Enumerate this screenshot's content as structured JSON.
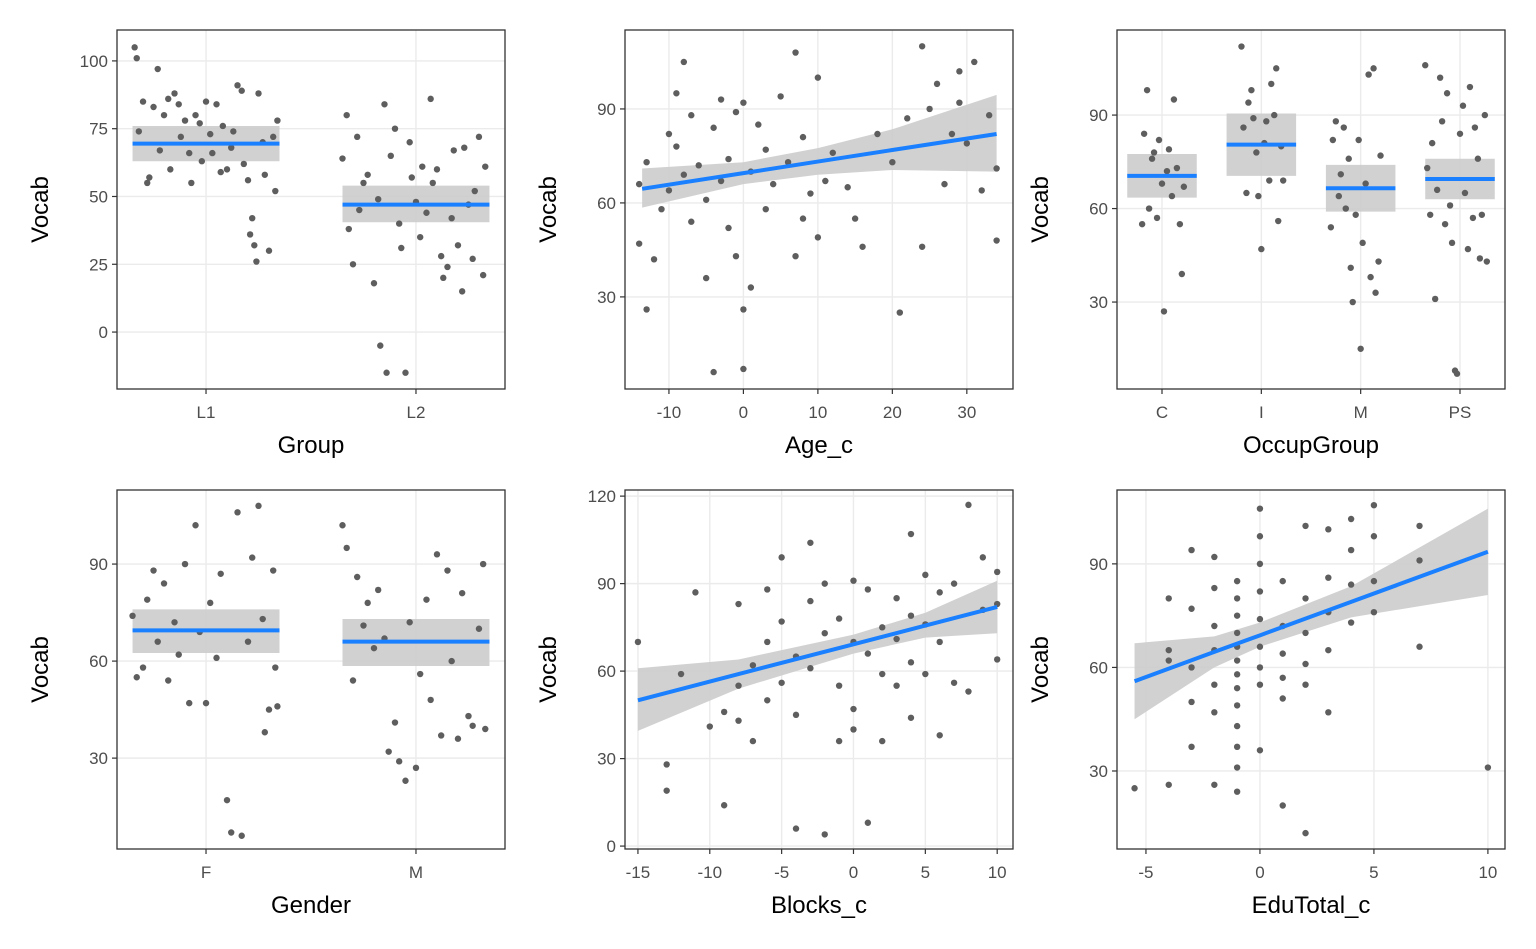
{
  "chart_data": [
    {
      "type": "scatter",
      "xlabel": "Group",
      "ylabel": "Vocab",
      "xlim": [
        0.576,
        2.424
      ],
      "ylim": [
        -21.0,
        111.4
      ],
      "xticks": [
        {
          "value": 1,
          "label": "L1"
        },
        {
          "value": 2,
          "label": "L2"
        }
      ],
      "yticks": [
        0,
        25,
        50,
        75,
        100
      ],
      "grid": true,
      "point_color": "#5e5e5e",
      "line_color": "#1a80ff",
      "band_color": "#cccccc",
      "points": {
        "x": [
          0.66,
          0.67,
          0.68,
          0.7,
          0.72,
          0.73,
          0.75,
          0.77,
          0.78,
          0.8,
          0.82,
          0.83,
          0.85,
          0.87,
          0.88,
          0.9,
          0.92,
          0.93,
          0.95,
          0.97,
          0.98,
          1.0,
          1.02,
          1.03,
          1.05,
          1.07,
          1.08,
          1.1,
          1.12,
          1.13,
          1.15,
          1.17,
          1.18,
          1.2,
          1.21,
          1.22,
          1.23,
          1.24,
          1.25,
          1.27,
          1.28,
          1.3,
          1.32,
          1.33,
          1.34,
          1.65,
          1.67,
          1.68,
          1.7,
          1.72,
          1.73,
          1.75,
          1.77,
          1.8,
          1.82,
          1.83,
          1.85,
          1.86,
          1.88,
          1.9,
          1.92,
          1.93,
          1.95,
          1.97,
          1.98,
          2.0,
          2.02,
          2.03,
          2.05,
          2.07,
          2.08,
          2.1,
          2.12,
          2.13,
          2.15,
          2.17,
          2.18,
          2.2,
          2.22,
          2.23,
          2.25,
          2.27,
          2.28,
          2.3,
          2.32,
          2.33
        ],
        "y": [
          105,
          101,
          74,
          85,
          55,
          57,
          83,
          97,
          67,
          80,
          86,
          60,
          88,
          84,
          72,
          78,
          66,
          55,
          80,
          77,
          63,
          85,
          73,
          66,
          84,
          59,
          76,
          60,
          68,
          74,
          91,
          89,
          62,
          56,
          36,
          42,
          32,
          26,
          88,
          70,
          58,
          30,
          72,
          52,
          78,
          64,
          80,
          38,
          25,
          72,
          45,
          55,
          58,
          18,
          49,
          -5,
          84,
          -15,
          65,
          75,
          40,
          31,
          -15,
          70,
          57,
          48,
          35,
          61,
          44,
          86,
          55,
          60,
          28,
          20,
          24,
          42,
          67,
          32,
          15,
          68,
          47,
          27,
          52,
          72,
          21,
          61
        ]
      },
      "fits": [
        {
          "x": [
            0.65,
            1.35
          ],
          "y": [
            69.5,
            69.5
          ],
          "lower": [
            63,
            63
          ],
          "upper": [
            76,
            76
          ]
        },
        {
          "x": [
            1.65,
            2.35
          ],
          "y": [
            47,
            47
          ],
          "lower": [
            40.5,
            40.5
          ],
          "upper": [
            54,
            54
          ]
        }
      ]
    },
    {
      "type": "scatter",
      "xlabel": "Age_c",
      "ylabel": "Vocab",
      "xlim": [
        -15.9,
        36.2
      ],
      "ylim": [
        0.6,
        115.2
      ],
      "xticks": [
        -10,
        0,
        10,
        20,
        30
      ],
      "yticks": [
        30,
        60,
        90
      ],
      "grid": true,
      "point_color": "#5e5e5e",
      "line_color": "#1a80ff",
      "band_color": "#cccccc",
      "points": {
        "x": [
          -14,
          -14,
          -13,
          -13,
          -12,
          -11,
          -10,
          -10,
          -9,
          -9,
          -8,
          -8,
          -7,
          -7,
          -6,
          -5,
          -5,
          -4,
          -4,
          -3,
          -3,
          -2,
          -2,
          -1,
          -1,
          0,
          0,
          0,
          1,
          1,
          2,
          3,
          3,
          4,
          5,
          6,
          7,
          7,
          8,
          8,
          9,
          10,
          10,
          11,
          12,
          14,
          15,
          16,
          18,
          20,
          21,
          22,
          24,
          24,
          25,
          26,
          27,
          28,
          29,
          29,
          30,
          31,
          32,
          33,
          34,
          34
        ],
        "y": [
          66,
          47,
          73,
          26,
          42,
          58,
          82,
          64,
          95,
          78,
          105,
          69,
          54,
          88,
          72,
          61,
          36,
          6,
          84,
          93,
          67,
          74,
          52,
          89,
          43,
          92,
          26,
          7,
          33,
          70,
          85,
          77,
          58,
          66,
          94,
          73,
          108,
          43,
          81,
          55,
          63,
          100,
          49,
          67,
          76,
          65,
          55,
          46,
          82,
          73,
          25,
          87,
          110,
          46,
          90,
          98,
          66,
          82,
          102,
          92,
          79,
          105,
          64,
          88,
          48,
          71
        ]
      },
      "fits": [
        {
          "x": [
            -13.6,
            0,
            10,
            20,
            34
          ],
          "y": [
            64.5,
            69.5,
            73.2,
            76.9,
            82
          ],
          "lower": [
            58.5,
            66,
            69,
            70.5,
            70
          ],
          "upper": [
            71,
            73,
            77.5,
            83.5,
            94.5
          ]
        }
      ]
    },
    {
      "type": "scatter",
      "xlabel": "OccupGroup",
      "ylabel": "Vocab",
      "xlim": [
        0.547,
        4.453
      ],
      "ylim": [
        2.1,
        117.3
      ],
      "xticks": [
        {
          "value": 1,
          "label": "C"
        },
        {
          "value": 2,
          "label": "I"
        },
        {
          "value": 3,
          "label": "M"
        },
        {
          "value": 4,
          "label": "PS"
        }
      ],
      "yticks": [
        30,
        60,
        90
      ],
      "grid": true,
      "point_color": "#5e5e5e",
      "line_color": "#1a80ff",
      "band_color": "#cccccc",
      "points": {
        "x": [
          0.8,
          0.82,
          0.85,
          0.87,
          0.9,
          0.92,
          0.95,
          0.97,
          1.0,
          1.02,
          1.05,
          1.07,
          1.1,
          1.12,
          1.15,
          1.18,
          1.2,
          1.22,
          1.8,
          1.82,
          1.85,
          1.87,
          1.9,
          1.92,
          1.95,
          1.97,
          2.0,
          2.03,
          2.05,
          2.08,
          2.1,
          2.13,
          2.15,
          2.17,
          2.2,
          2.22,
          2.7,
          2.72,
          2.75,
          2.78,
          2.8,
          2.83,
          2.85,
          2.88,
          2.9,
          2.92,
          2.95,
          2.98,
          3.0,
          3.02,
          3.05,
          3.08,
          3.1,
          3.13,
          3.15,
          3.18,
          3.2,
          3.65,
          3.67,
          3.7,
          3.72,
          3.75,
          3.77,
          3.8,
          3.82,
          3.85,
          3.87,
          3.9,
          3.92,
          3.95,
          3.97,
          4.0,
          4.03,
          4.05,
          4.08,
          4.1,
          4.13,
          4.15,
          4.18,
          4.2,
          4.22,
          4.25,
          4.27
        ],
        "y": [
          55,
          84,
          98,
          60,
          76,
          78,
          57,
          82,
          68,
          27,
          72,
          79,
          64,
          95,
          73,
          55,
          39,
          67,
          112,
          86,
          65,
          94,
          98,
          89,
          78,
          64,
          47,
          81,
          88,
          69,
          100,
          90,
          105,
          56,
          80,
          69,
          54,
          82,
          88,
          64,
          71,
          86,
          60,
          76,
          41,
          30,
          58,
          82,
          15,
          49,
          68,
          103,
          38,
          105,
          33,
          43,
          77,
          106,
          73,
          58,
          81,
          31,
          66,
          102,
          88,
          55,
          97,
          61,
          49,
          8,
          7,
          84,
          93,
          65,
          47,
          99,
          57,
          86,
          76,
          44,
          58,
          90,
          43
        ]
      },
      "fits": [
        {
          "x": [
            0.65,
            1.35
          ],
          "y": [
            70.5,
            70.5
          ],
          "lower": [
            63.5,
            63.5
          ],
          "upper": [
            77.5,
            77.5
          ]
        },
        {
          "x": [
            1.65,
            2.35
          ],
          "y": [
            80.5,
            80.5
          ],
          "lower": [
            70.5,
            70.5
          ],
          "upper": [
            90.5,
            90.5
          ]
        },
        {
          "x": [
            2.65,
            3.35
          ],
          "y": [
            66.5,
            66.5
          ],
          "lower": [
            59,
            59
          ],
          "upper": [
            74,
            74
          ]
        },
        {
          "x": [
            3.65,
            4.35
          ],
          "y": [
            69.5,
            69.5
          ],
          "lower": [
            63,
            63
          ],
          "upper": [
            76,
            76
          ]
        }
      ]
    },
    {
      "type": "scatter",
      "xlabel": "Gender",
      "ylabel": "Vocab",
      "xlim": [
        0.576,
        2.424
      ],
      "ylim": [
        1.9,
        112.9
      ],
      "xticks": [
        {
          "value": 1,
          "label": "F"
        },
        {
          "value": 2,
          "label": "M"
        }
      ],
      "yticks": [
        30,
        60,
        90
      ],
      "grid": true,
      "point_color": "#5e5e5e",
      "line_color": "#1a80ff",
      "band_color": "#cccccc",
      "points": {
        "x": [
          0.65,
          0.67,
          0.7,
          0.72,
          0.75,
          0.77,
          0.8,
          0.82,
          0.85,
          0.87,
          0.9,
          0.92,
          0.95,
          0.97,
          1.0,
          1.02,
          1.05,
          1.07,
          1.1,
          1.12,
          1.15,
          1.17,
          1.2,
          1.22,
          1.25,
          1.27,
          1.28,
          1.3,
          1.32,
          1.33,
          1.34,
          1.65,
          1.67,
          1.7,
          1.72,
          1.75,
          1.77,
          1.8,
          1.82,
          1.85,
          1.87,
          1.9,
          1.92,
          1.95,
          1.97,
          2.0,
          2.02,
          2.05,
          2.07,
          2.1,
          2.12,
          2.15,
          2.17,
          2.2,
          2.22,
          2.25,
          2.27,
          2.3,
          2.32,
          2.33
        ],
        "y": [
          74,
          55,
          58,
          79,
          88,
          66,
          84,
          54,
          72,
          62,
          90,
          47,
          102,
          69,
          47,
          78,
          61,
          87,
          17,
          7,
          106,
          6,
          66,
          92,
          108,
          73,
          38,
          45,
          88,
          58,
          46,
          102,
          95,
          54,
          86,
          71,
          78,
          64,
          82,
          67,
          32,
          41,
          29,
          23,
          72,
          27,
          56,
          79,
          48,
          93,
          37,
          88,
          60,
          36,
          81,
          43,
          40,
          70,
          90,
          39
        ]
      },
      "fits": [
        {
          "x": [
            0.65,
            1.35
          ],
          "y": [
            69.5,
            69.5
          ],
          "lower": [
            62.5,
            62.5
          ],
          "upper": [
            76,
            76
          ]
        },
        {
          "x": [
            1.65,
            2.35
          ],
          "y": [
            66,
            66
          ],
          "lower": [
            58.5,
            58.5
          ],
          "upper": [
            73,
            73
          ]
        }
      ]
    },
    {
      "type": "scatter",
      "xlabel": "Blocks_c",
      "ylabel": "Vocab",
      "xlim": [
        -15.9,
        11.1
      ],
      "ylim": [
        -1.0,
        122.1
      ],
      "xticks": [
        -15,
        -10,
        -5,
        0,
        5,
        10
      ],
      "yticks": [
        0,
        30,
        60,
        90,
        120
      ],
      "grid": true,
      "point_color": "#5e5e5e",
      "line_color": "#1a80ff",
      "band_color": "#cccccc",
      "points": {
        "x": [
          -15,
          -13,
          -13,
          -12,
          -11,
          -10,
          -9,
          -9,
          -8,
          -8,
          -8,
          -7,
          -7,
          -6,
          -6,
          -6,
          -5,
          -5,
          -5,
          -4,
          -4,
          -4,
          -3,
          -3,
          -3,
          -2,
          -2,
          -2,
          -1,
          -1,
          -1,
          0,
          0,
          0,
          0,
          1,
          1,
          1,
          2,
          2,
          2,
          3,
          3,
          3,
          4,
          4,
          4,
          4,
          5,
          5,
          5,
          6,
          6,
          6,
          7,
          7,
          8,
          8,
          9,
          9,
          10,
          10,
          10
        ],
        "y": [
          70,
          28,
          19,
          59,
          87,
          41,
          14,
          46,
          83,
          55,
          43,
          62,
          36,
          88,
          70,
          50,
          99,
          77,
          56,
          65,
          45,
          6,
          104,
          84,
          61,
          90,
          73,
          4,
          78,
          55,
          36,
          91,
          70,
          47,
          40,
          88,
          66,
          8,
          75,
          59,
          36,
          85,
          71,
          55,
          107,
          79,
          63,
          44,
          93,
          76,
          59,
          87,
          70,
          38,
          90,
          56,
          117,
          53,
          99,
          81,
          94,
          64,
          83
        ]
      },
      "fits": [
        {
          "x": [
            -15,
            -8,
            0,
            5,
            10
          ],
          "y": [
            50,
            59,
            69.2,
            75.6,
            82
          ],
          "lower": [
            39.5,
            54,
            66,
            71.5,
            73
          ],
          "upper": [
            61,
            64,
            72.5,
            80,
            91
          ]
        }
      ]
    },
    {
      "type": "scatter",
      "xlabel": "EduTotal_c",
      "ylabel": "Vocab",
      "xlim": [
        -6.27,
        10.75
      ],
      "ylim": [
        7.4,
        111.4
      ],
      "xticks": [
        -5,
        0,
        5,
        10
      ],
      "yticks": [
        30,
        60,
        90
      ],
      "grid": true,
      "point_color": "#5e5e5e",
      "line_color": "#1a80ff",
      "band_color": "#cccccc",
      "points": {
        "x": [
          -5.5,
          -4,
          -4,
          -4,
          -4,
          -3,
          -3,
          -3,
          -3,
          -3,
          -2,
          -2,
          -2,
          -2,
          -2,
          -2,
          -2,
          -1,
          -1,
          -1,
          -1,
          -1,
          -1,
          -1,
          -1,
          -1,
          -1,
          -1,
          -1,
          -1,
          0,
          0,
          0,
          0,
          0,
          0,
          0,
          0,
          0,
          1,
          1,
          1,
          1,
          1,
          1,
          2,
          2,
          2,
          2,
          2,
          2,
          3,
          3,
          3,
          3,
          3,
          4,
          4,
          4,
          4,
          5,
          5,
          5,
          5,
          7,
          7,
          7,
          10
        ],
        "y": [
          25,
          80,
          65,
          62,
          26,
          94,
          77,
          60,
          50,
          37,
          92,
          83,
          72,
          65,
          55,
          47,
          26,
          85,
          80,
          75,
          70,
          66,
          62,
          58,
          54,
          49,
          43,
          37,
          31,
          24,
          106,
          98,
          90,
          82,
          74,
          66,
          60,
          55,
          36,
          85,
          72,
          64,
          57,
          51,
          20,
          101,
          80,
          70,
          61,
          55,
          12,
          100,
          86,
          76,
          65,
          47,
          103,
          94,
          84,
          73,
          107,
          98,
          85,
          76,
          101,
          91,
          66,
          31
        ]
      },
      "fits": [
        {
          "x": [
            -5.5,
            -2,
            0,
            4,
            10
          ],
          "y": [
            56,
            64.5,
            69.3,
            79,
            93.5
          ],
          "lower": [
            45,
            60,
            66,
            74.5,
            81
          ],
          "upper": [
            67,
            69,
            73,
            83.5,
            106
          ]
        }
      ]
    }
  ]
}
